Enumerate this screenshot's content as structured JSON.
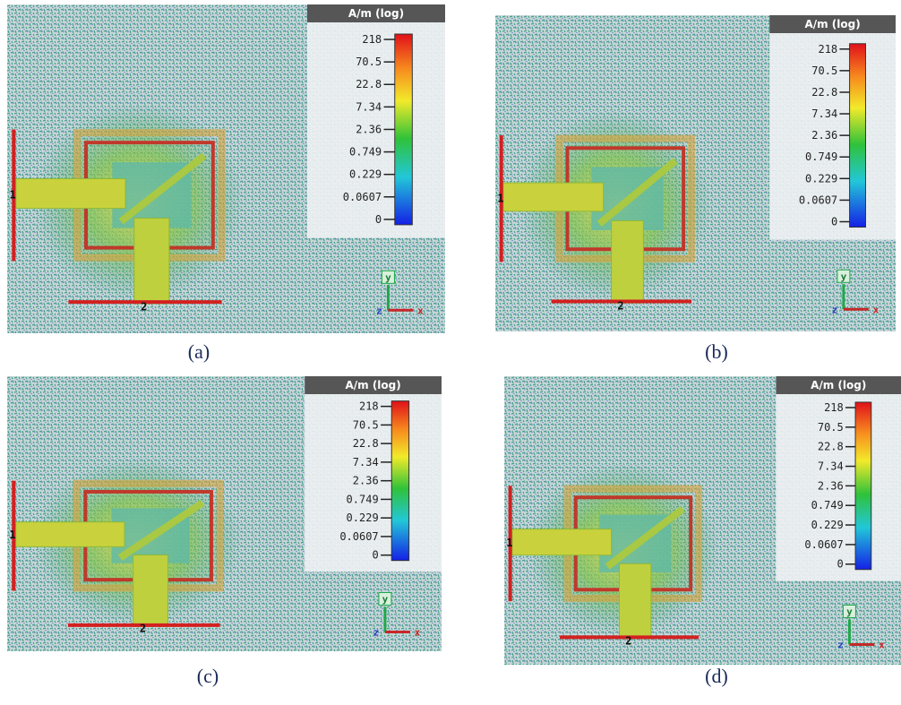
{
  "panels": [
    {
      "legend": {
        "title": "A/m (log)",
        "ticks": [
          "218",
          "70.5",
          "22.8",
          "7.34",
          "2.36",
          "0.749",
          "0.229",
          "0.0607",
          "0"
        ]
      },
      "ports": [
        "1",
        "2"
      ],
      "axes": {
        "y": "y",
        "z": "z",
        "x": "x"
      },
      "caption": "(a)"
    },
    {
      "legend": {
        "title": "A/m (log)",
        "ticks": [
          "218",
          "70.5",
          "22.8",
          "7.34",
          "2.36",
          "0.749",
          "0.229",
          "0.0607",
          "0"
        ]
      },
      "ports": [
        "1",
        "2"
      ],
      "axes": {
        "y": "y",
        "z": "z",
        "x": "x"
      },
      "caption": "(b)"
    },
    {
      "legend": {
        "title": "A/m (log)",
        "ticks": [
          "218",
          "70.5",
          "22.8",
          "7.34",
          "2.36",
          "0.749",
          "0.229",
          "0.0607",
          "0"
        ]
      },
      "ports": [
        "1",
        "2"
      ],
      "axes": {
        "y": "y",
        "z": "z",
        "x": "x"
      },
      "caption": "(c)"
    },
    {
      "legend": {
        "title": "A/m (log)",
        "ticks": [
          "218",
          "70.5",
          "22.8",
          "7.34",
          "2.36",
          "0.749",
          "0.229",
          "0.0607",
          "0"
        ]
      },
      "ports": [
        "1",
        "2"
      ],
      "axes": {
        "y": "y",
        "z": "z",
        "x": "x"
      },
      "caption": "(d)"
    }
  ]
}
